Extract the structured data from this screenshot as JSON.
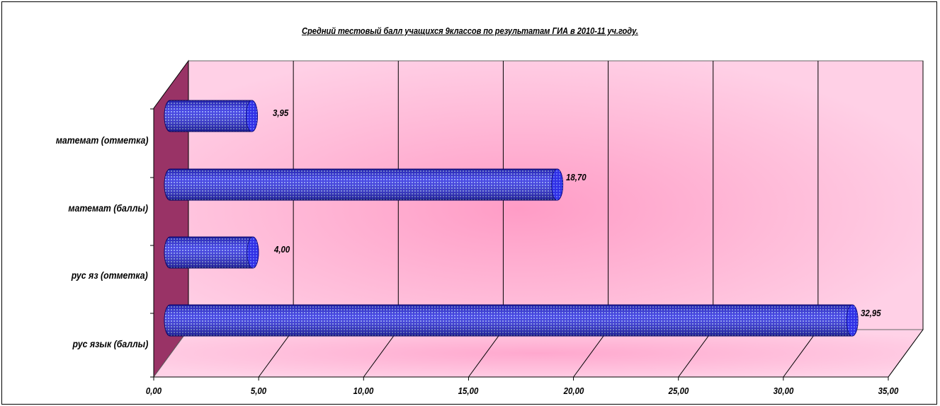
{
  "chart_data": {
    "type": "bar",
    "orientation": "horizontal",
    "style": "3d-cylinder",
    "title": "Средний тестовый балл учащихся 9классов по результатам ГИА в 2010-11 уч.году.",
    "categories": [
      "математ (отметка)",
      "математ (баллы)",
      "рус яз (отметка)",
      "рус язык (баллы)"
    ],
    "values": [
      3.95,
      18.7,
      4.0,
      32.95
    ],
    "value_labels": [
      "3,95",
      "18,70",
      "4,00",
      "32,95"
    ],
    "xlim": [
      0,
      35
    ],
    "xticks": [
      "0,00",
      "5,00",
      "10,00",
      "15,00",
      "20,00",
      "25,00",
      "30,00",
      "35,00"
    ],
    "grid": true,
    "legend": "none"
  },
  "colors": {
    "bar_fill": "#2a2ae0",
    "bar_dots": "#9ab4ff",
    "wall_pink": "#ffc4de",
    "wall_center": "#ff9cc6",
    "side_wall": "#993366",
    "grid": "#000000"
  }
}
